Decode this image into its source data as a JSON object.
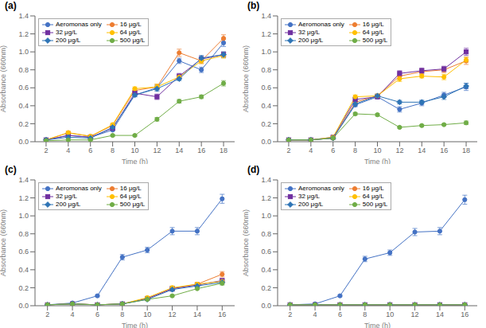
{
  "chart_data": [
    {
      "type": "line",
      "title": "(a)",
      "xlabel": "Time (h)",
      "ylabel": "Absorbance (660nm)",
      "x": [
        2,
        4,
        6,
        8,
        10,
        12,
        14,
        16,
        18
      ],
      "xlim": [
        1,
        19
      ],
      "xticks": [
        2,
        4,
        6,
        8,
        10,
        12,
        14,
        16,
        18
      ],
      "ylim": [
        0,
        1.4
      ],
      "yticks": [
        {
          "value": 0,
          "label": "0.0"
        },
        0.2,
        0.4,
        0.6,
        0.8,
        {
          "value": 1,
          "label": "1.0"
        },
        1.2,
        1.4
      ],
      "grid": false,
      "legend": "upper left",
      "series": [
        {
          "name": "Aeromonas only",
          "color": "#4472C4",
          "marker": "circle",
          "values": [
            0.02,
            0.07,
            0.05,
            0.13,
            0.52,
            0.6,
            0.9,
            0.8,
            1.1
          ],
          "errors": [
            0.005,
            0.01,
            0.01,
            0.01,
            0.02,
            0.03,
            0.03,
            0.03,
            0.04
          ]
        },
        {
          "name": "16 μg/L",
          "color": "#ED7D31",
          "marker": "circle",
          "values": [
            0.02,
            0.1,
            0.06,
            0.18,
            0.57,
            0.61,
            0.99,
            0.9,
            1.15
          ],
          "errors": [
            0.005,
            0.015,
            0.01,
            0.015,
            0.02,
            0.03,
            0.04,
            0.03,
            0.04
          ]
        },
        {
          "name": "32 μg/L",
          "color": "#7030A0",
          "marker": "square",
          "values": [
            0.02,
            0.07,
            0.05,
            0.15,
            0.54,
            0.5,
            0.73,
            0.92,
            0.97
          ],
          "errors": [
            0.005,
            0.01,
            0.01,
            0.01,
            0.02,
            0.03,
            0.03,
            0.03,
            0.03
          ]
        },
        {
          "name": "64 μg/L",
          "color": "#FFC000",
          "marker": "circle",
          "values": [
            0.02,
            0.1,
            0.06,
            0.19,
            0.59,
            0.61,
            0.72,
            0.9,
            0.96
          ],
          "errors": [
            0.005,
            0.015,
            0.01,
            0.015,
            0.02,
            0.03,
            0.02,
            0.03,
            0.03
          ]
        },
        {
          "name": "200 μg/L",
          "color": "#2E74B5",
          "marker": "diamond",
          "values": [
            0.02,
            0.05,
            0.04,
            0.16,
            0.52,
            0.59,
            0.7,
            0.93,
            0.97
          ],
          "errors": [
            0.005,
            0.01,
            0.01,
            0.01,
            0.02,
            0.03,
            0.02,
            0.03,
            0.03
          ]
        },
        {
          "name": "500 μg/L",
          "color": "#70AD47",
          "marker": "circle",
          "values": [
            0.01,
            0.02,
            0.02,
            0.07,
            0.07,
            0.25,
            0.45,
            0.5,
            0.65
          ],
          "errors": [
            0.005,
            0.005,
            0.005,
            0.01,
            0.01,
            0.02,
            0.02,
            0.02,
            0.03
          ]
        }
      ]
    },
    {
      "type": "line",
      "title": "(b)",
      "xlabel": "Time (h)",
      "ylabel": "Absorbance (660nm)",
      "x": [
        2,
        4,
        6,
        8,
        10,
        12,
        14,
        16,
        18
      ],
      "xlim": [
        1,
        19
      ],
      "xticks": [
        2,
        4,
        6,
        8,
        10,
        12,
        14,
        16,
        18
      ],
      "ylim": [
        0,
        1.4
      ],
      "yticks": [
        {
          "value": 0,
          "label": "0.0"
        },
        0.2,
        0.4,
        0.6,
        0.8,
        {
          "value": 1,
          "label": "1.0"
        },
        1.2,
        1.4
      ],
      "grid": false,
      "legend": "upper left",
      "series": [
        {
          "name": "Aeromonas only",
          "color": "#4472C4",
          "marker": "circle",
          "values": [
            0.02,
            0.02,
            0.04,
            0.41,
            0.5,
            0.36,
            0.43,
            0.52,
            0.61
          ],
          "errors": [
            0.005,
            0.005,
            0.01,
            0.02,
            0.02,
            0.03,
            0.03,
            0.03,
            0.04
          ]
        },
        {
          "name": "16 μg/L",
          "color": "#ED7D31",
          "marker": "circle",
          "values": [
            0.02,
            0.02,
            0.04,
            0.44,
            0.51,
            0.73,
            0.78,
            0.8,
            0.9
          ],
          "errors": [
            0.005,
            0.005,
            0.01,
            0.02,
            0.02,
            0.03,
            0.03,
            0.03,
            0.04
          ]
        },
        {
          "name": "32 μg/L",
          "color": "#7030A0",
          "marker": "square",
          "values": [
            0.02,
            0.02,
            0.05,
            0.47,
            0.5,
            0.76,
            0.79,
            0.81,
            1.0
          ],
          "errors": [
            0.005,
            0.005,
            0.01,
            0.02,
            0.02,
            0.03,
            0.03,
            0.03,
            0.04
          ]
        },
        {
          "name": "64 μg/L",
          "color": "#FFC000",
          "marker": "circle",
          "values": [
            0.02,
            0.02,
            0.05,
            0.5,
            0.51,
            0.7,
            0.73,
            0.72,
            0.91
          ],
          "errors": [
            0.005,
            0.005,
            0.01,
            0.02,
            0.02,
            0.03,
            0.02,
            0.03,
            0.03
          ]
        },
        {
          "name": "200 μg/L",
          "color": "#2E74B5",
          "marker": "diamond",
          "values": [
            0.02,
            0.02,
            0.04,
            0.42,
            0.51,
            0.44,
            0.44,
            0.5,
            0.62
          ],
          "errors": [
            0.005,
            0.005,
            0.01,
            0.02,
            0.02,
            0.02,
            0.02,
            0.03,
            0.03
          ]
        },
        {
          "name": "500 μg/L",
          "color": "#70AD47",
          "marker": "circle",
          "values": [
            0.02,
            0.02,
            0.04,
            0.31,
            0.3,
            0.16,
            0.18,
            0.19,
            0.21
          ],
          "errors": [
            0.005,
            0.005,
            0.01,
            0.015,
            0.015,
            0.01,
            0.01,
            0.01,
            0.02
          ]
        }
      ]
    },
    {
      "type": "line",
      "title": "(c)",
      "xlabel": "Time (h)",
      "ylabel": "Absorbance (660nm)",
      "x": [
        2,
        4,
        6,
        8,
        10,
        12,
        14,
        16
      ],
      "xlim": [
        1,
        17
      ],
      "xticks": [
        2,
        4,
        6,
        8,
        10,
        12,
        14,
        16
      ],
      "ylim": [
        0,
        1.4
      ],
      "yticks": [
        {
          "value": 0,
          "label": "0.0"
        },
        0.2,
        0.4,
        0.6,
        0.8,
        {
          "value": 1,
          "label": "1.0"
        },
        1.2,
        1.4
      ],
      "grid": false,
      "legend": "upper left",
      "series": [
        {
          "name": "Aeromonas only",
          "color": "#4472C4",
          "marker": "circle",
          "values": [
            0.01,
            0.03,
            0.11,
            0.54,
            0.62,
            0.83,
            0.83,
            1.19
          ],
          "errors": [
            0.005,
            0.01,
            0.01,
            0.03,
            0.03,
            0.04,
            0.04,
            0.05
          ]
        },
        {
          "name": "16 μg/L",
          "color": "#ED7D31",
          "marker": "circle",
          "values": [
            0.01,
            0.02,
            0.01,
            0.02,
            0.08,
            0.19,
            0.24,
            0.35
          ],
          "errors": [
            0.005,
            0.005,
            0.005,
            0.005,
            0.01,
            0.02,
            0.02,
            0.03
          ]
        },
        {
          "name": "32 μg/L",
          "color": "#7030A0",
          "marker": "square",
          "values": [
            0.01,
            0.02,
            0.01,
            0.02,
            0.08,
            0.19,
            0.23,
            0.28
          ],
          "errors": [
            0.005,
            0.005,
            0.005,
            0.005,
            0.01,
            0.02,
            0.02,
            0.02
          ]
        },
        {
          "name": "64 μg/L",
          "color": "#FFC000",
          "marker": "circle",
          "values": [
            0.01,
            0.02,
            0.01,
            0.02,
            0.09,
            0.2,
            0.24,
            0.27
          ],
          "errors": [
            0.005,
            0.005,
            0.005,
            0.005,
            0.01,
            0.02,
            0.02,
            0.02
          ]
        },
        {
          "name": "200 μg/L",
          "color": "#2E74B5",
          "marker": "diamond",
          "values": [
            0.01,
            0.02,
            0.01,
            0.02,
            0.07,
            0.18,
            0.22,
            0.26
          ],
          "errors": [
            0.005,
            0.005,
            0.005,
            0.005,
            0.01,
            0.02,
            0.02,
            0.02
          ]
        },
        {
          "name": "500 μg/L",
          "color": "#70AD47",
          "marker": "circle",
          "values": [
            0.01,
            0.02,
            0.01,
            0.02,
            0.07,
            0.11,
            0.19,
            0.25
          ],
          "errors": [
            0.005,
            0.005,
            0.005,
            0.005,
            0.01,
            0.01,
            0.01,
            0.02
          ]
        }
      ]
    },
    {
      "type": "line",
      "title": "(d)",
      "xlabel": "Time (h)",
      "ylabel": "Absorbance (660nm)",
      "x": [
        2,
        4,
        6,
        8,
        10,
        12,
        14,
        16
      ],
      "xlim": [
        1,
        17
      ],
      "xticks": [
        2,
        4,
        6,
        8,
        10,
        12,
        14,
        16
      ],
      "ylim": [
        0,
        1.4
      ],
      "yticks": [
        {
          "value": 0,
          "label": "0.0"
        },
        0.2,
        0.4,
        0.6,
        0.8,
        {
          "value": 1,
          "label": "1.0"
        },
        1.2,
        1.4
      ],
      "grid": false,
      "legend": "upper left",
      "series": [
        {
          "name": "Aeromonas only",
          "color": "#4472C4",
          "marker": "circle",
          "values": [
            0.01,
            0.02,
            0.11,
            0.52,
            0.59,
            0.82,
            0.83,
            1.18
          ],
          "errors": [
            0.005,
            0.005,
            0.01,
            0.03,
            0.03,
            0.04,
            0.04,
            0.05
          ]
        },
        {
          "name": "16 μg/L",
          "color": "#ED7D31",
          "marker": "circle",
          "values": [
            0.01,
            0.01,
            0.01,
            0.01,
            0.01,
            0.01,
            0.01,
            0.01
          ],
          "errors": [
            0.002,
            0.002,
            0.002,
            0.002,
            0.002,
            0.002,
            0.002,
            0.002
          ]
        },
        {
          "name": "32 μg/L",
          "color": "#7030A0",
          "marker": "square",
          "values": [
            0.01,
            0.01,
            0.01,
            0.01,
            0.01,
            0.01,
            0.01,
            0.01
          ],
          "errors": [
            0.002,
            0.002,
            0.002,
            0.002,
            0.002,
            0.002,
            0.002,
            0.002
          ]
        },
        {
          "name": "64 μg/L",
          "color": "#FFC000",
          "marker": "circle",
          "values": [
            0.01,
            0.01,
            0.01,
            0.01,
            0.01,
            0.01,
            0.01,
            0.01
          ],
          "errors": [
            0.002,
            0.002,
            0.002,
            0.002,
            0.002,
            0.002,
            0.002,
            0.002
          ]
        },
        {
          "name": "200 μg/L",
          "color": "#2E74B5",
          "marker": "diamond",
          "values": [
            0.01,
            0.01,
            0.01,
            0.01,
            0.01,
            0.01,
            0.01,
            0.01
          ],
          "errors": [
            0.002,
            0.002,
            0.002,
            0.002,
            0.002,
            0.002,
            0.002,
            0.002
          ]
        },
        {
          "name": "500 μg/L",
          "color": "#70AD47",
          "marker": "circle",
          "values": [
            0.01,
            0.01,
            0.01,
            0.01,
            0.01,
            0.01,
            0.01,
            0.01
          ],
          "errors": [
            0.002,
            0.002,
            0.002,
            0.002,
            0.002,
            0.002,
            0.002,
            0.002
          ]
        }
      ]
    }
  ]
}
